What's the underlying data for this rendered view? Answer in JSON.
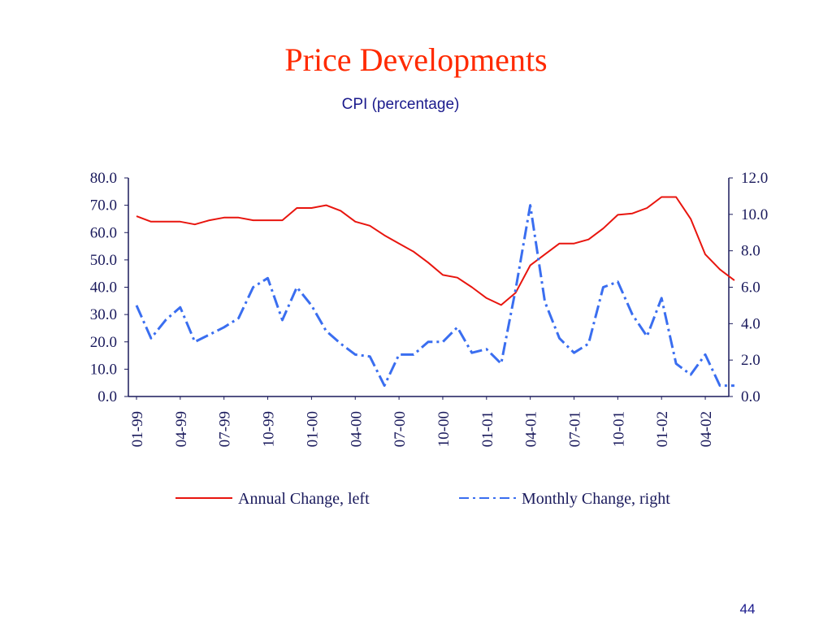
{
  "slide": {
    "title": "Price Developments",
    "subtitle": "CPI  (percentage)",
    "page_number": "44"
  },
  "colors": {
    "annual": "#e8150e",
    "monthly": "#3a6ef0",
    "axis": "#1a1a5c"
  },
  "chart_data": {
    "type": "line",
    "title": "Price Developments",
    "subtitle": "CPI  (percentage)",
    "x": [
      "01-99",
      "02-99",
      "03-99",
      "04-99",
      "05-99",
      "06-99",
      "07-99",
      "08-99",
      "09-99",
      "10-99",
      "11-99",
      "12-99",
      "01-00",
      "02-00",
      "03-00",
      "04-00",
      "05-00",
      "06-00",
      "07-00",
      "08-00",
      "09-00",
      "10-00",
      "11-00",
      "12-00",
      "01-01",
      "02-01",
      "03-01",
      "04-01",
      "05-01",
      "06-01",
      "07-01",
      "08-01",
      "09-01",
      "10-01",
      "11-01",
      "12-01",
      "01-02",
      "02-02",
      "03-02",
      "04-02",
      "05-02",
      "06-02"
    ],
    "x_tick_labels": [
      "01-99",
      "04-99",
      "07-99",
      "10-99",
      "01-00",
      "04-00",
      "07-00",
      "10-00",
      "01-01",
      "04-01",
      "07-01",
      "10-01",
      "01-02",
      "04-02"
    ],
    "series": [
      {
        "name": "Annual Change, left",
        "axis": "left",
        "style": "solid",
        "values": [
          66.0,
          64.0,
          64.0,
          64.0,
          63.0,
          64.5,
          65.5,
          65.5,
          64.5,
          64.5,
          64.5,
          69.0,
          69.0,
          70.0,
          68.0,
          64.0,
          62.5,
          59.0,
          56.0,
          53.0,
          49.0,
          44.5,
          43.5,
          40.0,
          36.0,
          33.5,
          38.0,
          48.0,
          52.0,
          56.0,
          56.0,
          57.5,
          61.5,
          66.5,
          67.0,
          69.0,
          73.0,
          73.0,
          65.0,
          52.0,
          46.5,
          42.5
        ]
      },
      {
        "name": "Monthly Change, right",
        "axis": "right",
        "style": "dash-dot",
        "values": [
          5.0,
          3.2,
          4.2,
          4.9,
          3.0,
          3.4,
          3.8,
          4.3,
          6.0,
          6.5,
          4.2,
          6.0,
          5.0,
          3.6,
          2.9,
          2.3,
          2.2,
          0.6,
          2.3,
          2.3,
          3.0,
          3.0,
          3.8,
          2.4,
          2.6,
          1.8,
          5.9,
          10.5,
          5.2,
          3.2,
          2.4,
          2.9,
          6.0,
          6.3,
          4.5,
          3.3,
          5.4,
          1.8,
          1.2,
          2.3,
          0.6,
          0.6
        ]
      }
    ],
    "y_left": {
      "lim": [
        0,
        80
      ],
      "ticks": [
        "0.0",
        "10.0",
        "20.0",
        "30.0",
        "40.0",
        "50.0",
        "60.0",
        "70.0",
        "80.0"
      ]
    },
    "y_right": {
      "lim": [
        0,
        12
      ],
      "ticks": [
        "0.0",
        "2.0",
        "4.0",
        "6.0",
        "8.0",
        "10.0",
        "12.0"
      ]
    },
    "grid": false,
    "legend_position": "bottom"
  }
}
